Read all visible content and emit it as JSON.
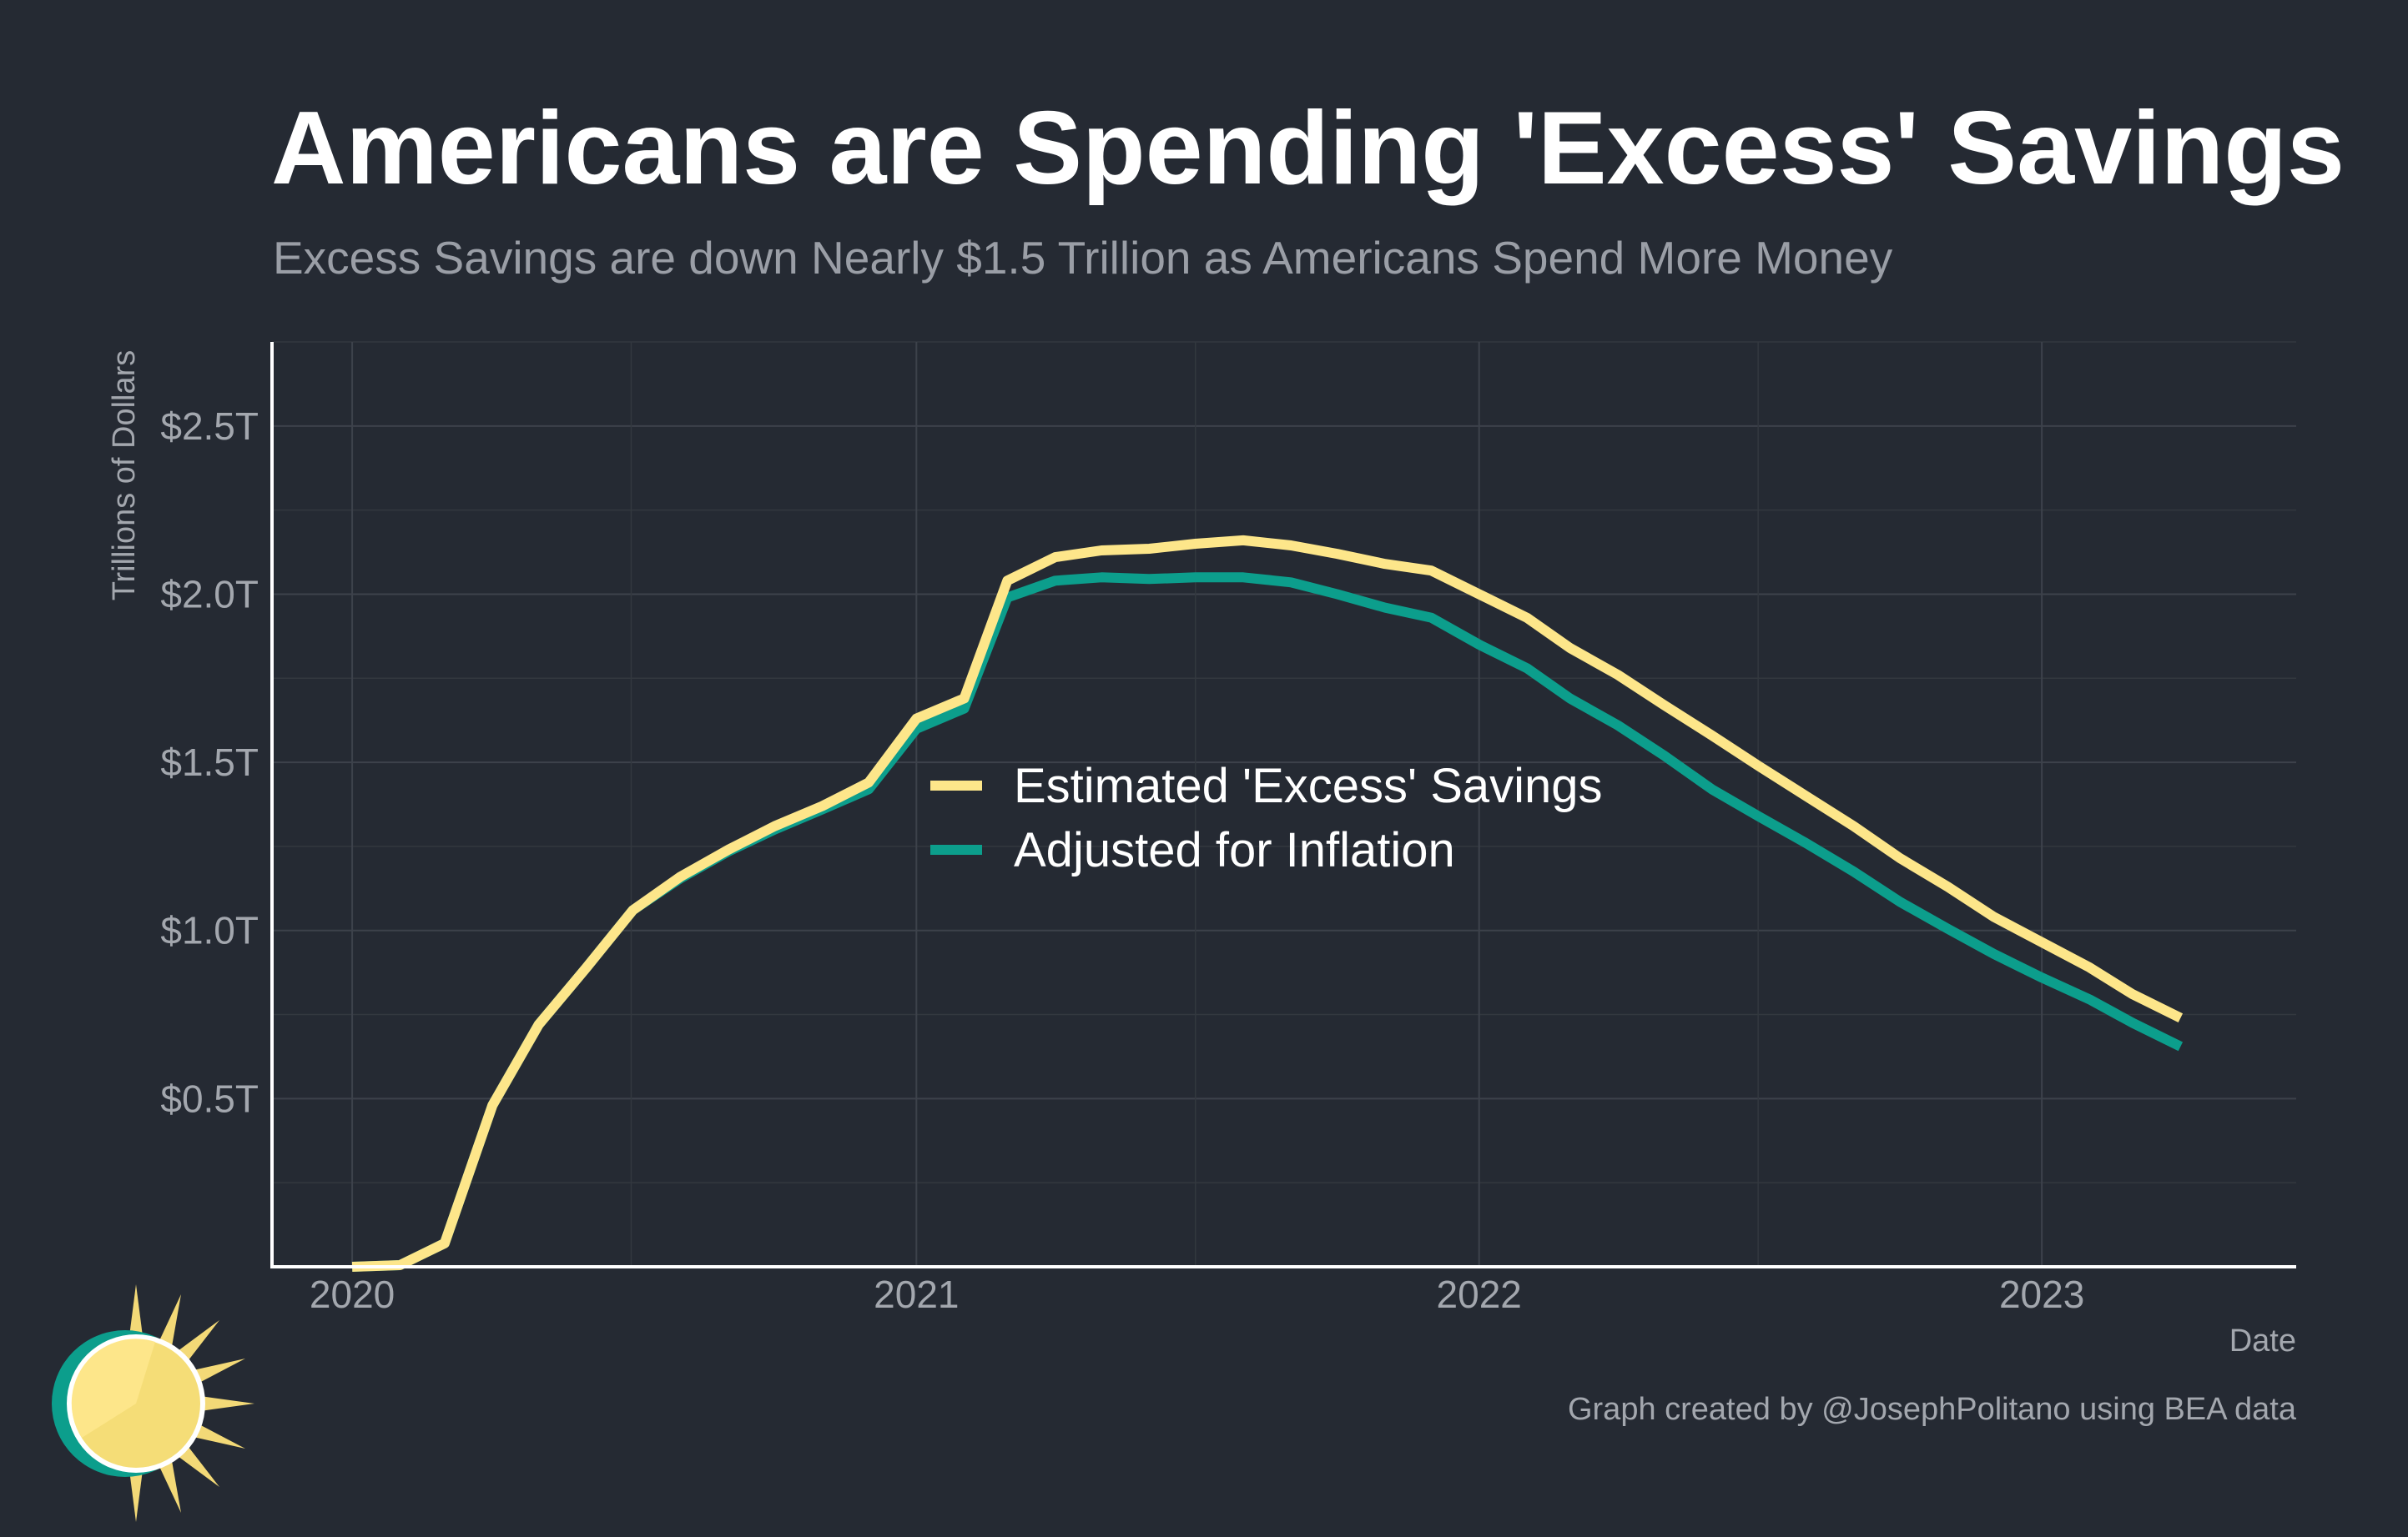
{
  "chart_data": {
    "type": "line",
    "title": "Americans are Spending 'Excess' Savings",
    "subtitle": "Excess Savings are down Nearly $1.5 Trillion as Americans Spend More Money",
    "xlabel": "Date",
    "ylabel": "Trillions of Dollars",
    "caption": "Graph created by @JosephPolitano using BEA data",
    "xlim": [
      "2019-11-10",
      "2023-06-15"
    ],
    "ylim": [
      0,
      2.75
    ],
    "x_ticks": [
      {
        "date": "2020-01-01",
        "label": "2020"
      },
      {
        "date": "2021-01-01",
        "label": "2021"
      },
      {
        "date": "2022-01-01",
        "label": "2022"
      },
      {
        "date": "2023-01-01",
        "label": "2023"
      }
    ],
    "y_ticks": [
      {
        "value": 0.5,
        "label": "$0.5T"
      },
      {
        "value": 1.0,
        "label": "$1.0T"
      },
      {
        "value": 1.5,
        "label": "$1.5T"
      },
      {
        "value": 2.0,
        "label": "$2.0T"
      },
      {
        "value": 2.5,
        "label": "$2.5T"
      }
    ],
    "grid": true,
    "legend_position": "center",
    "x": [
      "2020-01",
      "2020-02",
      "2020-03",
      "2020-04",
      "2020-05",
      "2020-06",
      "2020-07",
      "2020-08",
      "2020-09",
      "2020-10",
      "2020-11",
      "2020-12",
      "2021-01",
      "2021-02",
      "2021-03",
      "2021-04",
      "2021-05",
      "2021-06",
      "2021-07",
      "2021-08",
      "2021-09",
      "2021-10",
      "2021-11",
      "2021-12",
      "2022-01",
      "2022-02",
      "2022-03",
      "2022-04",
      "2022-05",
      "2022-06",
      "2022-07",
      "2022-08",
      "2022-09",
      "2022-10",
      "2022-11",
      "2022-12",
      "2023-01",
      "2023-02",
      "2023-03",
      "2023-04"
    ],
    "series": [
      {
        "name": "Estimated 'Excess' Savings",
        "color": "#fde68a",
        "values": [
          0.0,
          0.005,
          0.07,
          0.48,
          0.72,
          0.89,
          1.06,
          1.16,
          1.24,
          1.31,
          1.37,
          1.44,
          1.63,
          1.69,
          2.04,
          2.11,
          2.13,
          2.135,
          2.15,
          2.16,
          2.145,
          2.12,
          2.09,
          2.07,
          2.0,
          1.93,
          1.84,
          1.76,
          1.67,
          1.58,
          1.49,
          1.4,
          1.31,
          1.215,
          1.13,
          1.04,
          0.965,
          0.89,
          0.81,
          0.74
        ]
      },
      {
        "name": "Adjusted for Inflation",
        "color": "#0c9e8c",
        "values": [
          0.0,
          0.005,
          0.07,
          0.48,
          0.72,
          0.89,
          1.06,
          1.155,
          1.235,
          1.3,
          1.36,
          1.42,
          1.6,
          1.66,
          1.99,
          2.04,
          2.05,
          2.045,
          2.05,
          2.05,
          2.035,
          2.0,
          1.96,
          1.93,
          1.85,
          1.78,
          1.69,
          1.61,
          1.52,
          1.42,
          1.34,
          1.26,
          1.175,
          1.085,
          1.005,
          0.93,
          0.86,
          0.795,
          0.725,
          0.655
        ]
      }
    ]
  },
  "icons": {
    "logo": "sun-logo-icon"
  }
}
